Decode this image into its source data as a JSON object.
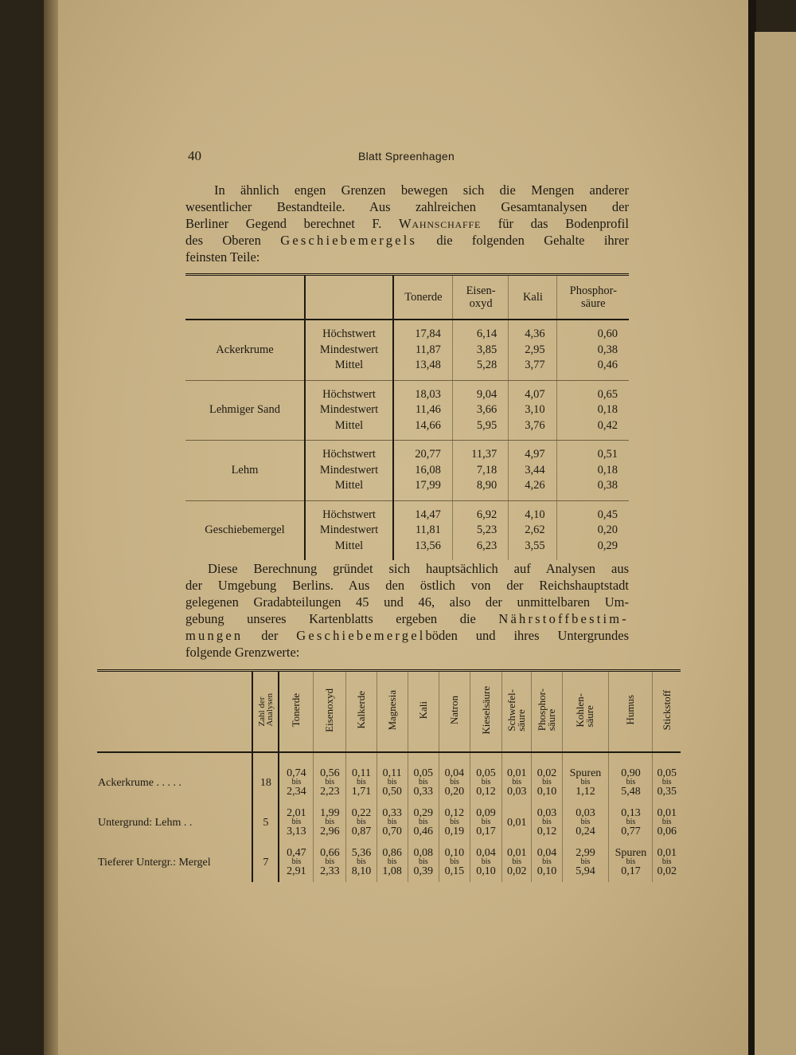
{
  "header": {
    "page_number": "40",
    "title": "Blatt Spreenhagen"
  },
  "paragraph1": [
    [
      {
        "t": "In ähnlich engen Grenzen bewegen sich die Mengen anderer"
      }
    ],
    [
      {
        "t": "wesentlicher Bestandteile. Aus zahlreichen Gesamtanalysen der"
      }
    ],
    [
      {
        "t": "Berliner Gegend berechnet F. "
      },
      {
        "t": "Wahnschaffe",
        "s": "sc"
      },
      {
        "t": " für das Bodenprofil"
      }
    ],
    [
      {
        "t": "des Oberen "
      },
      {
        "t": "Geschiebemergels",
        "s": "sp"
      },
      {
        "t": " die folgenden Gehalte ihrer"
      }
    ],
    [
      {
        "t": "feinsten Teile:"
      }
    ]
  ],
  "table1": {
    "headers": [
      "",
      "",
      "Tonerde",
      "Eisen-\noxyd",
      "Kali",
      "Phosphor-\nsäure"
    ],
    "row_labels": [
      "Höchstwert",
      "Mindestwert",
      "Mittel"
    ],
    "groups": [
      {
        "name": "Ackerkrume",
        "values": [
          [
            "17,84",
            "6,14",
            "4,36",
            "0,60"
          ],
          [
            "11,87",
            "3,85",
            "2,95",
            "0,38"
          ],
          [
            "13,48",
            "5,28",
            "3,77",
            "0,46"
          ]
        ]
      },
      {
        "name": "Lehmiger Sand",
        "values": [
          [
            "18,03",
            "9,04",
            "4,07",
            "0,65"
          ],
          [
            "11,46",
            "3,66",
            "3,10",
            "0,18"
          ],
          [
            "14,66",
            "5,95",
            "3,76",
            "0,42"
          ]
        ]
      },
      {
        "name": "Lehm",
        "values": [
          [
            "20,77",
            "11,37",
            "4,97",
            "0,51"
          ],
          [
            "16,08",
            "7,18",
            "3,44",
            "0,18"
          ],
          [
            "17,99",
            "8,90",
            "4,26",
            "0,38"
          ]
        ]
      },
      {
        "name": "Geschiebemergel",
        "values": [
          [
            "14,47",
            "6,92",
            "4,10",
            "0,45"
          ],
          [
            "11,81",
            "5,23",
            "2,62",
            "0,20"
          ],
          [
            "13,56",
            "6,23",
            "3,55",
            "0,29"
          ]
        ]
      }
    ]
  },
  "paragraph2": [
    [
      {
        "t": "Diese Berechnung gründet sich hauptsächlich auf Analysen aus"
      }
    ],
    [
      {
        "t": "der Umgebung Berlins. Aus den östlich von der Reichshauptstadt"
      }
    ],
    [
      {
        "t": "gelegenen Gradabteilungen 45 und 46, also der unmittelbaren Um-"
      }
    ],
    [
      {
        "t": "gebung unseres Kartenblatts ergeben die "
      },
      {
        "t": "Nährstoffbestim-",
        "s": "sp"
      }
    ],
    [
      {
        "t": "mungen",
        "s": "sp"
      },
      {
        "t": " der "
      },
      {
        "t": "Geschiebemergel",
        "s": "sp"
      },
      {
        "t": "böden und ihres Untergrundes"
      }
    ],
    [
      {
        "t": "folgende Grenzwerte:"
      }
    ]
  ],
  "table2": {
    "headers": [
      "",
      "Zahl der\nAnalysen",
      "Tonerde",
      "Eisenoxyd",
      "Kalkerde",
      "Magnesia",
      "Kali",
      "Natron",
      "Kieselsäure",
      "Schwefel-\nsäure",
      "Phosphor-\nsäure",
      "Kohlen-\nsäure",
      "Humus",
      "Stickstoff"
    ],
    "range_word": "bis",
    "rows": [
      {
        "label": "Ackerkrume . . . . .",
        "count": "18",
        "cells": [
          [
            "0,74",
            "2,34"
          ],
          [
            "0,56",
            "2,23"
          ],
          [
            "0,11",
            "1,71"
          ],
          [
            "0,11",
            "0,50"
          ],
          [
            "0,05",
            "0,33"
          ],
          [
            "0,04",
            "0,20"
          ],
          [
            "0,05",
            "0,12"
          ],
          [
            "0,01",
            "0,03"
          ],
          [
            "0,02",
            "0,10"
          ],
          [
            "Spuren",
            "1,12"
          ],
          [
            "0,90",
            "5,48"
          ],
          [
            "0,05",
            "0,35"
          ]
        ]
      },
      {
        "label": "Untergrund: Lehm  . .",
        "count": "5",
        "cells": [
          [
            "2,01",
            "3,13"
          ],
          [
            "1,99",
            "2,96"
          ],
          [
            "0,22",
            "0,87"
          ],
          [
            "0,33",
            "0,70"
          ],
          [
            "0,29",
            "0,46"
          ],
          [
            "0,12",
            "0,19"
          ],
          [
            "0,09",
            "0,17"
          ],
          [
            "0,01"
          ],
          [
            "0,03",
            "0,12"
          ],
          [
            "0,03",
            "0,24"
          ],
          [
            "0,13",
            "0,77"
          ],
          [
            "0,01",
            "0,06"
          ]
        ]
      },
      {
        "label": "Tieferer Untergr.: Mergel",
        "count": "7",
        "cells": [
          [
            "0,47",
            "2,91"
          ],
          [
            "0,66",
            "2,33"
          ],
          [
            "5,36",
            "8,10"
          ],
          [
            "0,86",
            "1,08"
          ],
          [
            "0,08",
            "0,39"
          ],
          [
            "0,10",
            "0,15"
          ],
          [
            "0,04",
            "0,10"
          ],
          [
            "0,01",
            "0,02"
          ],
          [
            "0,04",
            "0,10"
          ],
          [
            "2,99",
            "5,94"
          ],
          [
            "Spuren",
            "0,17"
          ],
          [
            "0,01",
            "0,02"
          ]
        ]
      }
    ]
  }
}
